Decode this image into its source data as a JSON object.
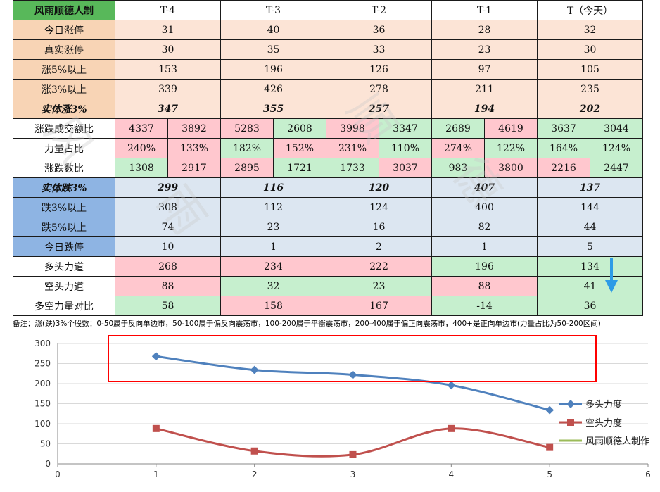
{
  "table": {
    "corner": "风雨顺德人制",
    "headers": [
      "T-4",
      "T-3",
      "T-2",
      "T-1",
      "T（今天）"
    ],
    "rows": {
      "limit_up": {
        "label": "今日涨停",
        "values": [
          "31",
          "40",
          "36",
          "28",
          "32"
        ]
      },
      "real_limit_up": {
        "label": "真实涨停",
        "values": [
          "30",
          "35",
          "33",
          "23",
          "30"
        ]
      },
      "up5": {
        "label": "涨5%以上",
        "values": [
          "153",
          "196",
          "126",
          "97",
          "105"
        ]
      },
      "up3": {
        "label": "涨3%以上",
        "values": [
          "339",
          "426",
          "278",
          "211",
          "235"
        ]
      },
      "solid_up3": {
        "label": "实体涨3%",
        "values": [
          "347",
          "355",
          "257",
          "194",
          "202"
        ]
      },
      "turnover_ratio": {
        "label": "涨跌成交额比",
        "values": [
          [
            "4337",
            "3892"
          ],
          [
            "5283",
            "2608"
          ],
          [
            "3998",
            "3347"
          ],
          [
            "2689",
            "4619"
          ],
          [
            "3637",
            "3044"
          ]
        ]
      },
      "power_share": {
        "label": "力量占比",
        "values": [
          [
            "240%",
            "133%"
          ],
          [
            "182%",
            "152%"
          ],
          [
            "231%",
            "110%"
          ],
          [
            "274%",
            "122%"
          ],
          [
            "164%",
            "124%"
          ]
        ]
      },
      "count_ratio": {
        "label": "涨跌数比",
        "values": [
          [
            "1308",
            "2917"
          ],
          [
            "2895",
            "1721"
          ],
          [
            "1733",
            "3037"
          ],
          [
            "983",
            "3800"
          ],
          [
            "2216",
            "2447"
          ]
        ]
      },
      "solid_down3": {
        "label": "实体跌3%",
        "values": [
          "299",
          "116",
          "120",
          "407",
          "137"
        ]
      },
      "down3": {
        "label": "跌3%以上",
        "values": [
          "308",
          "112",
          "124",
          "400",
          "144"
        ]
      },
      "down5": {
        "label": "跌5%以上",
        "values": [
          "74",
          "23",
          "16",
          "82",
          "44"
        ]
      },
      "limit_down": {
        "label": "今日跌停",
        "values": [
          "10",
          "1",
          "2",
          "1",
          "5"
        ]
      },
      "bull_force": {
        "label": "多头力道",
        "values": [
          "268",
          "234",
          "222",
          "196",
          "134"
        ]
      },
      "bear_force": {
        "label": "空头力道",
        "values": [
          "88",
          "32",
          "23",
          "88",
          "41"
        ]
      },
      "bull_bear_diff": {
        "label": "多空力量对比",
        "values": [
          "58",
          "158",
          "167",
          "-14",
          "36"
        ]
      }
    }
  },
  "note": "备注：涨(跌)3%个股数：0-50属于反向单边市，50-100属于偏反向震荡市，100-200属于平衡震荡市，200-400属于偏正向震荡市，400+是正向单边市(力量占比为50-200区间)",
  "colors": {
    "corner_green": "#58b85a",
    "peach": "#fce4d6",
    "label_peach": "#f8d4b5",
    "blue": "#dce6f1",
    "label_blue": "#8eb4e3",
    "pink": "#ffc7ce",
    "green": "#c6efce",
    "bull_line": "#4f81bd",
    "bear_line": "#c0504d",
    "third_line": "#9bbb59",
    "highlight_box": "#ff0000",
    "arrow": "#2e9be6"
  },
  "icons": {
    "down_arrow": "down-arrow-icon"
  },
  "chart_data": {
    "type": "scatter",
    "x": [
      1,
      2,
      3,
      4,
      5
    ],
    "series": [
      {
        "name": "多头力度",
        "values": [
          268,
          234,
          222,
          196,
          134
        ],
        "color": "#4f81bd",
        "marker": "diamond"
      },
      {
        "name": "空头力度",
        "values": [
          88,
          32,
          23,
          88,
          41
        ],
        "color": "#c0504d",
        "marker": "square"
      },
      {
        "name": "风雨顺德人制作",
        "values": [],
        "color": "#9bbb59",
        "marker": "none"
      }
    ],
    "xlim": [
      0,
      6
    ],
    "ylim": [
      0,
      300
    ],
    "xticks": [
      "0",
      "1",
      "2",
      "3",
      "4",
      "5",
      "6"
    ],
    "yticks": [
      "0",
      "50",
      "100",
      "150",
      "200",
      "250",
      "300"
    ],
    "grid": true,
    "smooth": true,
    "legend": "right"
  }
}
